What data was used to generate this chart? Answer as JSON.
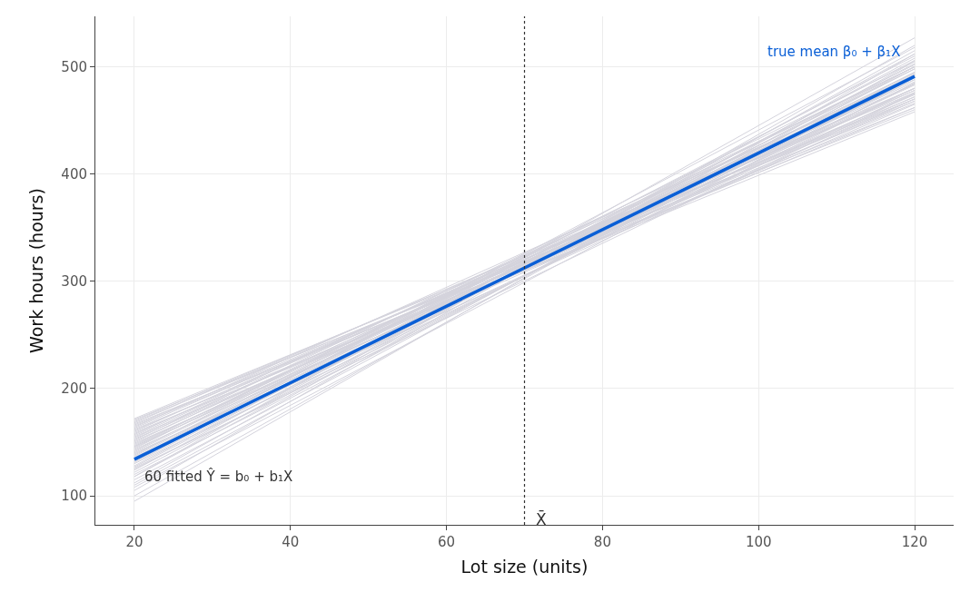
{
  "chart_data": {
    "type": "line",
    "xlabel": "Lot size (units)",
    "ylabel": "Work hours (hours)",
    "xlim": [
      15,
      125
    ],
    "xticks": [
      20,
      40,
      60,
      80,
      100,
      120
    ],
    "ylim": [
      73,
      547
    ],
    "yticks": [
      100,
      200,
      300,
      400,
      500
    ],
    "grid": true,
    "marker": "none",
    "line_style": "solid",
    "annotations": [
      "true mean β₀ + β₁X",
      "60 fitted Ŷ = b₀ + b₁X"
    ],
    "x": [
      20,
      120
    ],
    "ref_lines": [
      {
        "axis": "x",
        "value": 70,
        "label": "X̄",
        "color": "#333333",
        "line_style": "dotted"
      }
    ],
    "series": [
      {
        "color": "#d4d3dc",
        "values": [
          95,
          512
        ]
      },
      {
        "color": "#d4d3dc",
        "values": [
          100,
          505
        ]
      },
      {
        "color": "#d4d3dc",
        "values": [
          105,
          520
        ]
      },
      {
        "color": "#d4d3dc",
        "values": [
          110,
          500
        ]
      },
      {
        "color": "#d4d3dc",
        "values": [
          112,
          515
        ]
      },
      {
        "color": "#d4d3dc",
        "values": [
          115,
          495
        ]
      },
      {
        "color": "#d4d3dc",
        "values": [
          118,
          508
        ]
      },
      {
        "color": "#d4d3dc",
        "values": [
          120,
          490
        ]
      },
      {
        "color": "#d4d3dc",
        "values": [
          122,
          503
        ]
      },
      {
        "color": "#d4d3dc",
        "values": [
          124,
          512
        ]
      },
      {
        "color": "#d4d3dc",
        "values": [
          125,
          485
        ]
      },
      {
        "color": "#d4d3dc",
        "values": [
          127,
          498
        ]
      },
      {
        "color": "#d4d3dc",
        "values": [
          128,
          506
        ]
      },
      {
        "color": "#d4d3dc",
        "values": [
          130,
          480
        ]
      },
      {
        "color": "#d4d3dc",
        "values": [
          131,
          493
        ]
      },
      {
        "color": "#d4d3dc",
        "values": [
          132,
          500
        ]
      },
      {
        "color": "#d4d3dc",
        "values": [
          134,
          488
        ]
      },
      {
        "color": "#d4d3dc",
        "values": [
          135,
          510
        ]
      },
      {
        "color": "#d4d3dc",
        "values": [
          136,
          476
        ]
      },
      {
        "color": "#d4d3dc",
        "values": [
          137,
          495
        ]
      },
      {
        "color": "#d4d3dc",
        "values": [
          138,
          502
        ]
      },
      {
        "color": "#d4d3dc",
        "values": [
          139,
          484
        ]
      },
      {
        "color": "#d4d3dc",
        "values": [
          140,
          470
        ]
      },
      {
        "color": "#d4d3dc",
        "values": [
          141,
          492
        ]
      },
      {
        "color": "#d4d3dc",
        "values": [
          142,
          498
        ]
      },
      {
        "color": "#d4d3dc",
        "values": [
          143,
          480
        ]
      },
      {
        "color": "#d4d3dc",
        "values": [
          144,
          505
        ]
      },
      {
        "color": "#d4d3dc",
        "values": [
          145,
          488
        ]
      },
      {
        "color": "#d4d3dc",
        "values": [
          146,
          475
        ]
      },
      {
        "color": "#d4d3dc",
        "values": [
          147,
          494
        ]
      },
      {
        "color": "#d4d3dc",
        "values": [
          148,
          483
        ]
      },
      {
        "color": "#d4d3dc",
        "values": [
          149,
          468
        ]
      },
      {
        "color": "#d4d3dc",
        "values": [
          150,
          490
        ]
      },
      {
        "color": "#d4d3dc",
        "values": [
          151,
          478
        ]
      },
      {
        "color": "#d4d3dc",
        "values": [
          152,
          500
        ]
      },
      {
        "color": "#d4d3dc",
        "values": [
          153,
          472
        ]
      },
      {
        "color": "#d4d3dc",
        "values": [
          154,
          486
        ]
      },
      {
        "color": "#d4d3dc",
        "values": [
          155,
          465
        ]
      },
      {
        "color": "#d4d3dc",
        "values": [
          156,
          480
        ]
      },
      {
        "color": "#d4d3dc",
        "values": [
          157,
          492
        ]
      },
      {
        "color": "#d4d3dc",
        "values": [
          158,
          470
        ]
      },
      {
        "color": "#d4d3dc",
        "values": [
          159,
          462
        ]
      },
      {
        "color": "#d4d3dc",
        "values": [
          160,
          484
        ]
      },
      {
        "color": "#d4d3dc",
        "values": [
          161,
          474
        ]
      },
      {
        "color": "#d4d3dc",
        "values": [
          162,
          458
        ]
      },
      {
        "color": "#d4d3dc",
        "values": [
          163,
          478
        ]
      },
      {
        "color": "#d4d3dc",
        "values": [
          164,
          490
        ]
      },
      {
        "color": "#d4d3dc",
        "values": [
          165,
          466
        ]
      },
      {
        "color": "#d4d3dc",
        "values": [
          166,
          472
        ]
      },
      {
        "color": "#d4d3dc",
        "values": [
          167,
          460
        ]
      },
      {
        "color": "#d4d3dc",
        "values": [
          168,
          480
        ]
      },
      {
        "color": "#d4d3dc",
        "values": [
          169,
          468
        ]
      },
      {
        "color": "#d4d3dc",
        "values": [
          170,
          476
        ]
      },
      {
        "color": "#d4d3dc",
        "values": [
          171,
          462
        ]
      },
      {
        "color": "#d4d3dc",
        "values": [
          172,
          470
        ]
      },
      {
        "color": "#d4d3dc",
        "values": [
          118,
          527
        ]
      },
      {
        "color": "#d4d3dc",
        "values": [
          126,
          475
        ]
      },
      {
        "color": "#d4d3dc",
        "values": [
          108,
          490
        ]
      },
      {
        "color": "#d4d3dc",
        "values": [
          133,
          518
        ]
      },
      {
        "color": "#d4d3dc",
        "values": [
          146,
          500
        ]
      },
      {
        "color": "#0a5fd6",
        "values": [
          134,
          491
        ]
      }
    ]
  }
}
